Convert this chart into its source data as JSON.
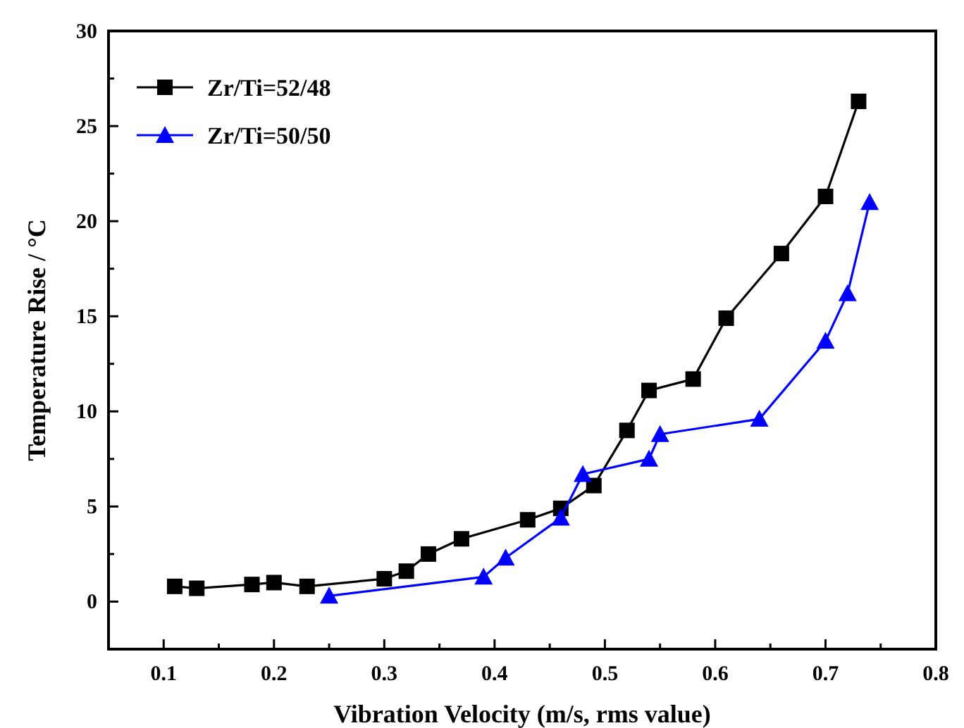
{
  "chart_data": {
    "type": "line",
    "xlabel": "Vibration Velocity (m/s, rms value)",
    "ylabel": "Temperature Rise / °C",
    "xlim": [
      0.05,
      0.8
    ],
    "ylim": [
      -2.5,
      30
    ],
    "xticks": [
      0.1,
      {
        "value": 0.15,
        "label": null
      },
      0.2,
      {
        "value": 0.25,
        "label": null
      },
      0.3,
      {
        "value": 0.35,
        "label": null
      },
      0.4,
      {
        "value": 0.45,
        "label": null
      },
      0.5,
      {
        "value": 0.55,
        "label": null
      },
      0.6,
      {
        "value": 0.65,
        "label": null
      },
      0.7,
      {
        "value": 0.75,
        "label": null
      },
      0.8
    ],
    "yticks": [
      {
        "value": -2.5,
        "label": null
      },
      0,
      {
        "value": 2.5,
        "label": null
      },
      5,
      {
        "value": 7.5,
        "label": null
      },
      10,
      {
        "value": 12.5,
        "label": null
      },
      15,
      {
        "value": 17.5,
        "label": null
      },
      20,
      {
        "value": 22.5,
        "label": null
      },
      25,
      {
        "value": 27.5,
        "label": null
      },
      30
    ],
    "grid": false,
    "legend": "top left",
    "line_style": "solid",
    "series": [
      {
        "name": "Zr/Ti=52/48",
        "color": "#000000",
        "marker": "square",
        "x": [
          0.11,
          0.13,
          0.18,
          0.2,
          0.23,
          0.3,
          0.32,
          0.34,
          0.37,
          0.43,
          0.46,
          0.49,
          0.52,
          0.54,
          0.58,
          0.61,
          0.66,
          0.7,
          0.73
        ],
        "values": [
          0.8,
          0.7,
          0.9,
          1.0,
          0.8,
          1.2,
          1.6,
          2.5,
          3.3,
          4.3,
          4.9,
          6.1,
          9.0,
          11.1,
          11.7,
          14.9,
          18.3,
          21.3,
          26.3
        ]
      },
      {
        "name": "Zr/Ti=50/50",
        "color": "#0000ff",
        "marker": "triangle",
        "x": [
          0.25,
          0.39,
          0.41,
          0.46,
          0.48,
          0.54,
          0.55,
          0.64,
          0.7,
          0.72,
          0.74
        ],
        "values": [
          0.3,
          1.3,
          2.3,
          4.4,
          6.7,
          7.5,
          8.8,
          9.6,
          13.7,
          16.2,
          21.0
        ]
      }
    ]
  }
}
